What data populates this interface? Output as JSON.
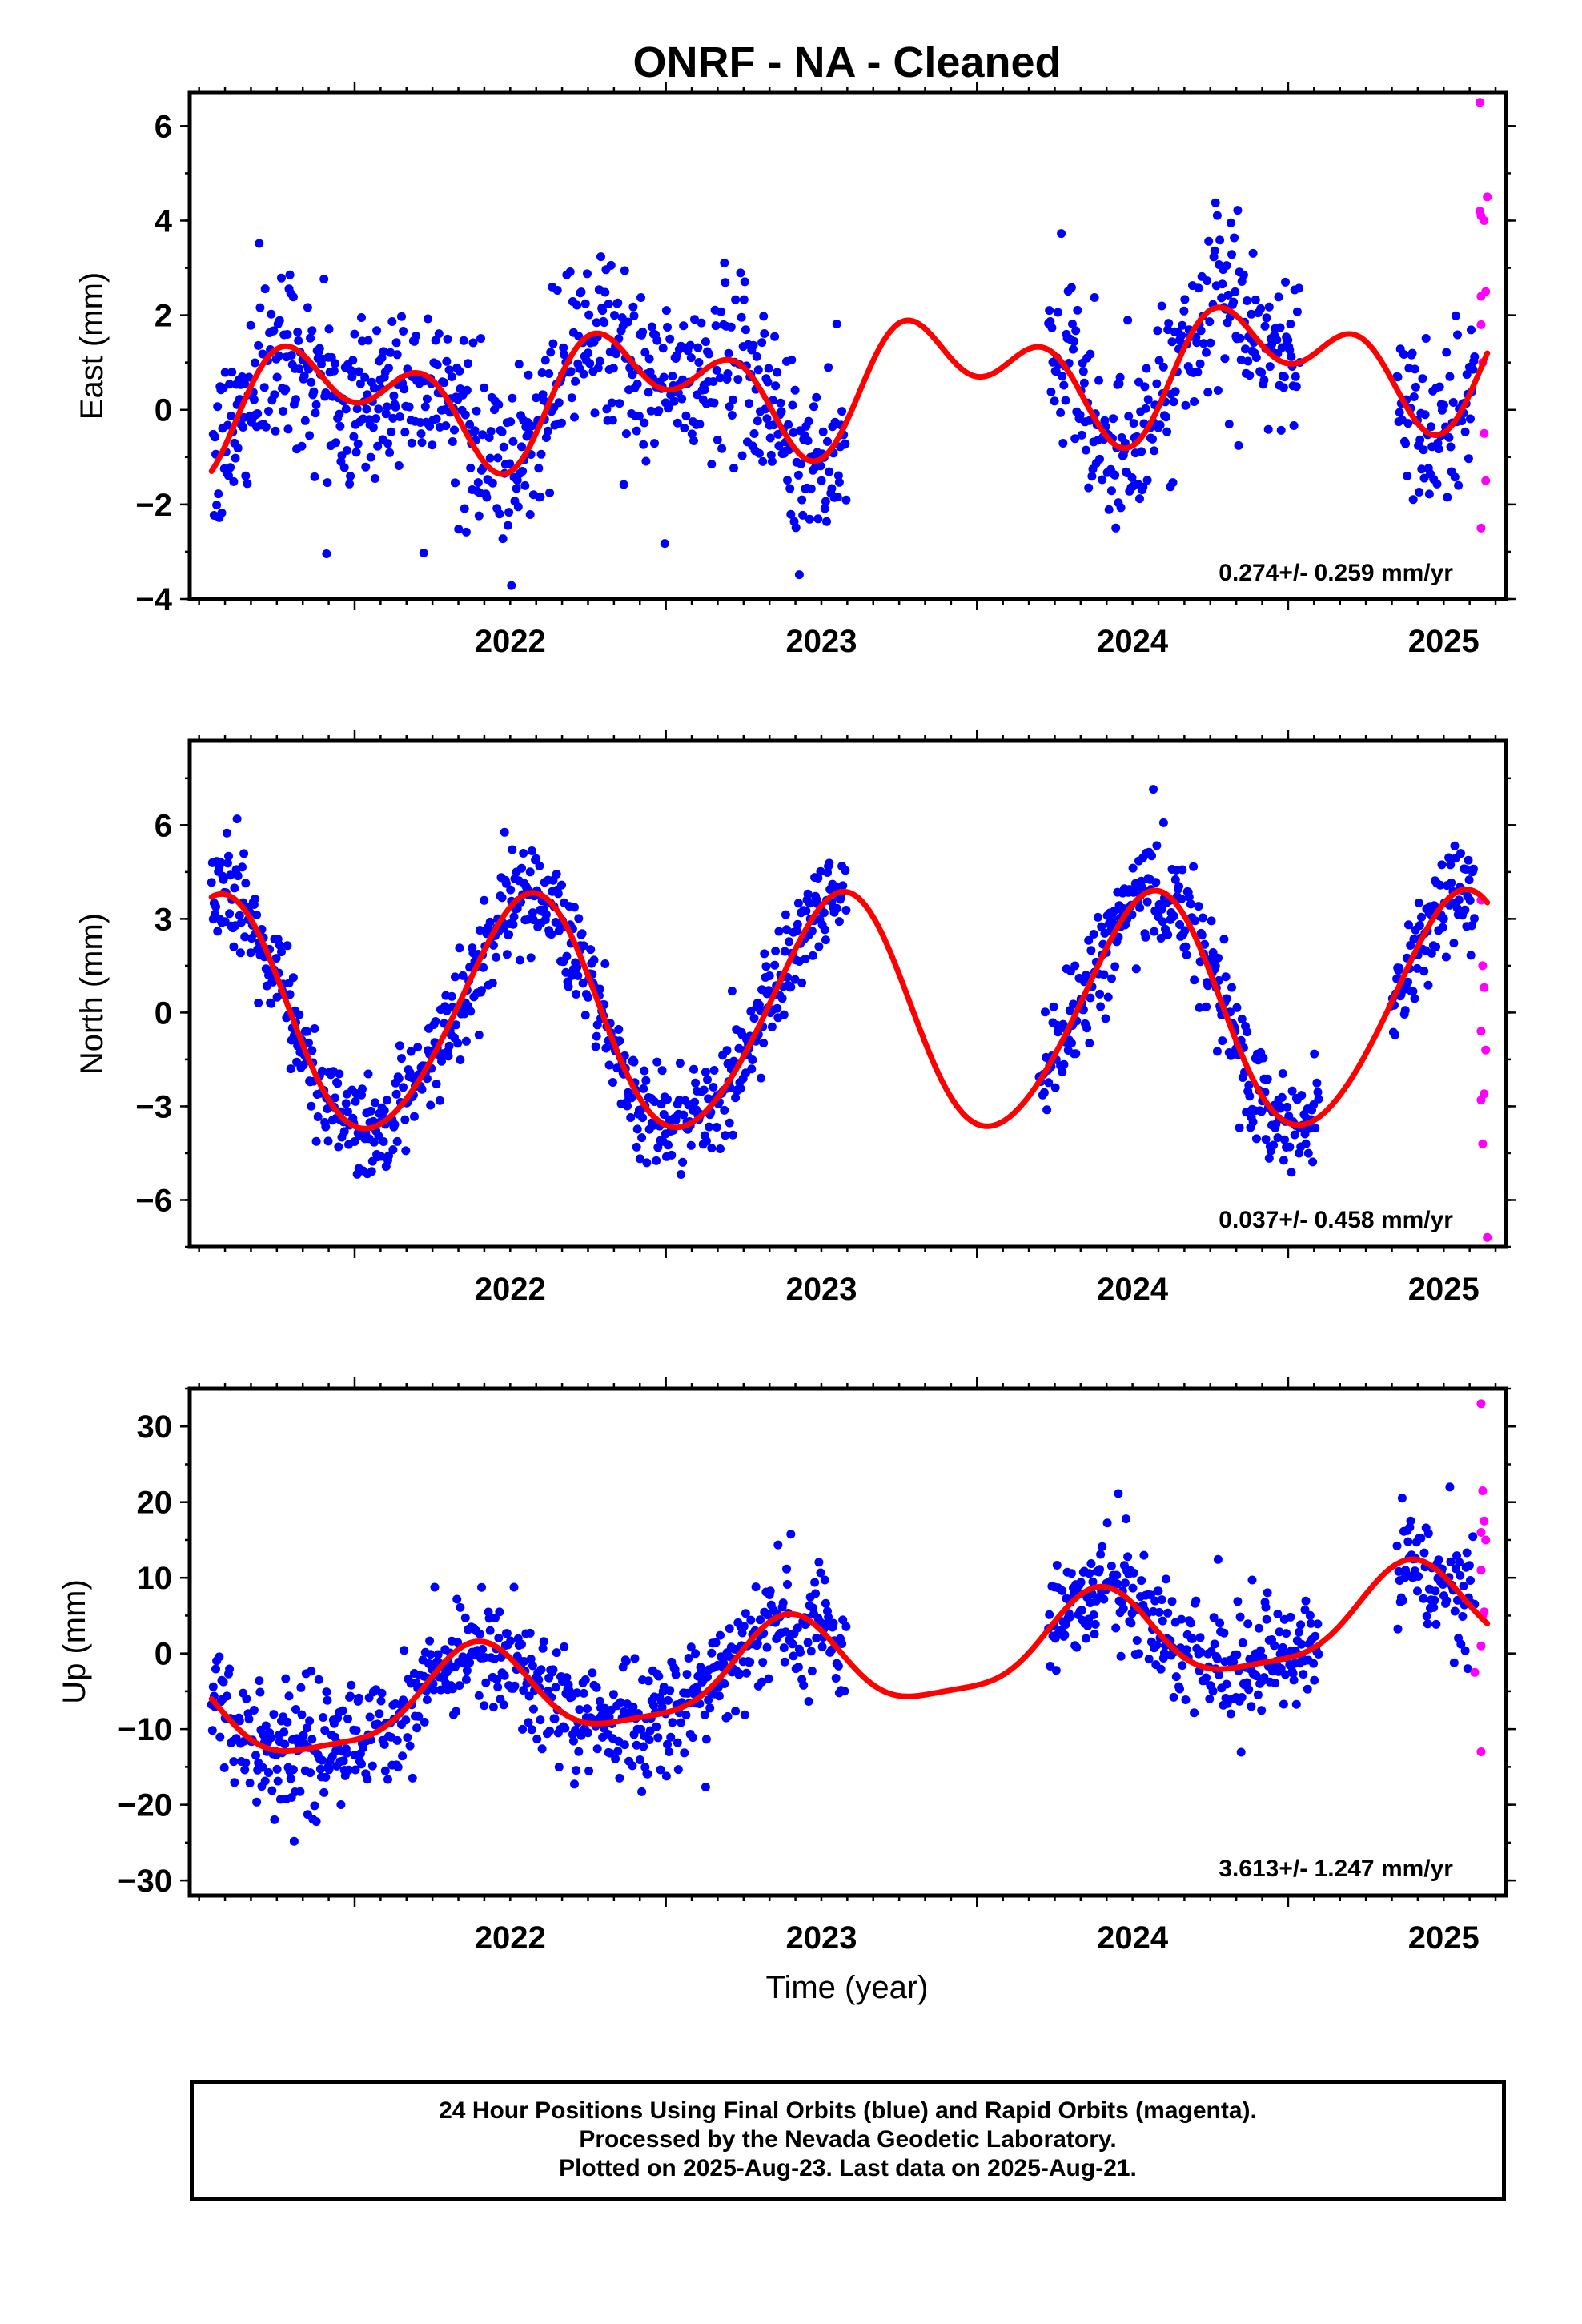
{
  "title": "ONRF  - NA - Cleaned",
  "x_axis": {
    "label": "Time (year)",
    "ticks": [
      "2022",
      "2023",
      "2024",
      "2025"
    ],
    "range": [
      2021.47,
      2025.7
    ]
  },
  "colors": {
    "final_orbits": "#0000ff",
    "rapid_orbits": "#ff00ff",
    "fit": "#ff0000"
  },
  "footer": {
    "line1": "24 Hour Positions Using Final Orbits (blue) and Rapid Orbits (magenta).",
    "line2": "Processed by the Nevada Geodetic Laboratory.",
    "line3": "Plotted on 2025-Aug-23. Last data on 2025-Aug-21."
  },
  "chart_data": [
    {
      "type": "scatter",
      "ylabel": "East (mm)",
      "xlabel": "",
      "xlim": [
        2021.47,
        2025.7
      ],
      "ylim": [
        -4.0,
        6.7
      ],
      "yticks": [
        -4,
        -2,
        0,
        2,
        4,
        6
      ],
      "xticks": [
        "2022",
        "2023",
        "2024",
        "2025"
      ],
      "rate_text": "0.274+/- 0.259 mm/yr",
      "seasonal": {
        "a1": 0.8,
        "b1": -0.4,
        "a2": -0.8,
        "b2": 0.1
      },
      "series": [
        {
          "name": "Final Orbits",
          "color": "#0000ff",
          "segments": [
            [
              2021.54,
              2023.58
            ],
            [
              2024.23,
              2025.04
            ],
            [
              2025.35,
              2025.6
            ]
          ],
          "noise": 0.9
        },
        {
          "name": "Rapid Orbits",
          "color": "#ff00ff",
          "points": [
            [
              2025.616,
              6.5
            ],
            [
              2025.616,
              4.2
            ],
            [
              2025.62,
              4.1
            ],
            [
              2025.63,
              4.0
            ],
            [
              2025.64,
              4.5
            ],
            [
              2025.62,
              2.4
            ],
            [
              2025.635,
              2.5
            ],
            [
              2025.62,
              1.8
            ],
            [
              2025.625,
              1.0
            ],
            [
              2025.63,
              -0.5
            ],
            [
              2025.635,
              -1.5
            ],
            [
              2025.62,
              -2.5
            ]
          ]
        }
      ],
      "fit": {
        "name": "Fit",
        "color": "#ff0000",
        "t_start": 2021.54,
        "t_end": 2025.64,
        "value_at_start": -1.3
      }
    },
    {
      "type": "scatter",
      "ylabel": "North (mm)",
      "xlabel": "",
      "xlim": [
        2021.47,
        2025.7
      ],
      "ylim": [
        -7.5,
        8.7
      ],
      "yticks": [
        -6,
        -3,
        0,
        3,
        6
      ],
      "xticks": [
        "2022",
        "2023",
        "2024",
        "2025"
      ],
      "rate_text": "0.037+/- 0.458 mm/yr",
      "seasonal": {
        "a1": -3.5,
        "b1": -1.3,
        "a2": 0.0,
        "b2": 0.3
      },
      "series": [
        {
          "name": "Final Orbits",
          "color": "#0000ff",
          "segments": [
            [
              2021.54,
              2023.58
            ],
            [
              2024.2,
              2025.1
            ],
            [
              2025.33,
              2025.6
            ]
          ],
          "noise": 0.85
        },
        {
          "name": "Rapid Orbits",
          "color": "#ff00ff",
          "points": [
            [
              2025.62,
              3.6
            ],
            [
              2025.625,
              1.5
            ],
            [
              2025.63,
              0.8
            ],
            [
              2025.62,
              -0.6
            ],
            [
              2025.635,
              -1.2
            ],
            [
              2025.62,
              -2.8
            ],
            [
              2025.63,
              -2.6
            ],
            [
              2025.625,
              -4.2
            ],
            [
              2025.64,
              -7.2
            ]
          ]
        }
      ],
      "fit": {
        "name": "Fit",
        "color": "#ff0000",
        "t_start": 2021.54,
        "t_end": 2025.64,
        "value_at_start": 3.7
      }
    },
    {
      "type": "scatter",
      "ylabel": "Up (mm)",
      "xlabel": "Time (year)",
      "xlim": [
        2021.47,
        2025.7
      ],
      "ylim": [
        -32,
        35
      ],
      "yticks": [
        -30,
        -20,
        -10,
        0,
        10,
        20,
        30
      ],
      "xticks": [
        "2022",
        "2023",
        "2024",
        "2025"
      ],
      "rate_text": "3.613+/- 1.247 mm/yr",
      "seasonal": {
        "a1": -4.5,
        "b1": 4.0,
        "a2": 0.5,
        "b2": -1.5
      },
      "series": [
        {
          "name": "Final Orbits",
          "color": "#0000ff",
          "segments": [
            [
              2021.54,
              2023.58
            ],
            [
              2024.23,
              2025.1
            ],
            [
              2025.35,
              2025.6
            ]
          ],
          "noise": 4.0
        },
        {
          "name": "Rapid Orbits",
          "color": "#ff00ff",
          "points": [
            [
              2025.62,
              33
            ],
            [
              2025.625,
              21.5
            ],
            [
              2025.63,
              17.5
            ],
            [
              2025.62,
              16
            ],
            [
              2025.635,
              15
            ],
            [
              2025.62,
              11
            ],
            [
              2025.63,
              5.5
            ],
            [
              2025.625,
              5.0
            ],
            [
              2025.62,
              1.0
            ],
            [
              2025.6,
              -2.5
            ],
            [
              2025.62,
              -13
            ]
          ]
        }
      ],
      "fit": {
        "name": "Fit",
        "color": "#ff0000",
        "t_start": 2021.54,
        "t_end": 2025.64,
        "value_at_start": -6.0
      }
    }
  ]
}
